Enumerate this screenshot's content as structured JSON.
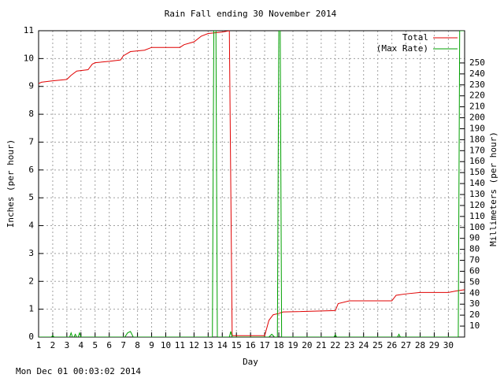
{
  "chart_data": {
    "type": "line",
    "title": "Rain Fall ending 30 November 2014",
    "x_label": "Day",
    "y_label": "Inches (per hour)",
    "y2_label": "Millimeters (per hour)",
    "timestamp": "Mon Dec 01 00:03:02 2014",
    "xlim": [
      1,
      31.15
    ],
    "xticks": [
      1,
      2,
      3,
      4,
      5,
      6,
      7,
      8,
      9,
      10,
      11,
      12,
      13,
      14,
      15,
      16,
      17,
      18,
      19,
      20,
      21,
      22,
      23,
      24,
      25,
      26,
      27,
      28,
      29,
      30
    ],
    "ylim": [
      0,
      11
    ],
    "yticks": [
      0,
      1,
      2,
      3,
      4,
      5,
      6,
      7,
      8,
      9,
      10,
      11
    ],
    "y2lim": [
      0,
      279.4
    ],
    "y2ticks": [
      10,
      20,
      30,
      40,
      50,
      60,
      70,
      80,
      90,
      100,
      110,
      120,
      130,
      140,
      150,
      160,
      170,
      180,
      190,
      200,
      210,
      220,
      230,
      240,
      250
    ],
    "grid": true,
    "legend": "top-right",
    "series": [
      {
        "name": "Total",
        "color": "#e00000",
        "x": [
          1,
          1.2,
          2,
          3,
          3.3,
          3.7,
          4.5,
          4.8,
          5,
          6,
          6.8,
          7,
          7.5,
          8.5,
          9,
          11,
          11.3,
          12,
          12.5,
          13,
          14,
          14.5,
          14.6,
          14.7,
          17,
          17.3,
          17.6,
          18,
          18.3,
          22,
          22.2,
          23,
          26,
          26.3,
          27,
          28,
          30,
          30.5,
          31.15
        ],
        "values": [
          9.1,
          9.15,
          9.2,
          9.25,
          9.4,
          9.55,
          9.6,
          9.8,
          9.85,
          9.9,
          9.95,
          10.1,
          10.25,
          10.3,
          10.4,
          10.4,
          10.5,
          10.6,
          10.8,
          10.9,
          10.95,
          11,
          5.5,
          0.05,
          0.05,
          0.6,
          0.8,
          0.85,
          0.9,
          0.95,
          1.2,
          1.3,
          1.3,
          1.5,
          1.55,
          1.6,
          1.6,
          1.65,
          1.7
        ]
      },
      {
        "name": "(Max Rate)",
        "color": "#00a000",
        "x": [
          1,
          1.9,
          2,
          2.1,
          3.2,
          3.3,
          3.4,
          3.5,
          3.6,
          3.7,
          3.8,
          3.9,
          4.0,
          7.1,
          7.3,
          7.5,
          7.7,
          13.3,
          13.4,
          13.55,
          13.65,
          14.5,
          14.6,
          14.7,
          17.3,
          17.5,
          17.7,
          17.9,
          18.0,
          18.1,
          18.2,
          21.9,
          22.0,
          22.1,
          26.4,
          26.5,
          26.6,
          30.7,
          30.8,
          30.9,
          31.1
        ],
        "values": [
          0,
          0,
          0.05,
          0,
          0,
          0.15,
          0,
          0,
          0.1,
          0,
          0,
          0.15,
          0,
          0,
          0.15,
          0.2,
          0,
          0,
          11,
          11,
          0,
          0,
          0.2,
          0,
          0,
          0.1,
          0,
          0,
          11,
          11,
          0,
          0,
          0.08,
          0,
          0,
          0.1,
          0,
          0,
          11,
          11,
          11
        ]
      }
    ]
  }
}
